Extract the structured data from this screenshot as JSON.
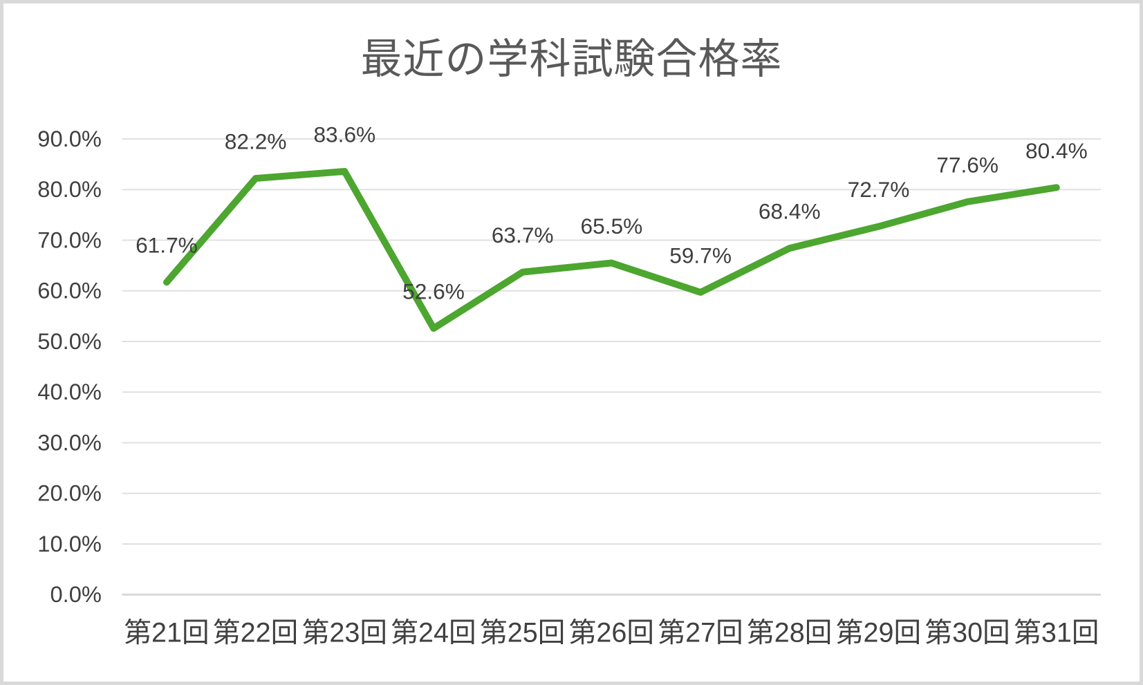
{
  "chart_data": {
    "type": "line",
    "title": "最近の学科試験合格率",
    "categories": [
      "第21回",
      "第22回",
      "第23回",
      "第24回",
      "第25回",
      "第26回",
      "第27回",
      "第28回",
      "第29回",
      "第30回",
      "第31回"
    ],
    "values": [
      61.7,
      82.2,
      83.6,
      52.6,
      63.7,
      65.5,
      59.7,
      68.4,
      72.7,
      77.6,
      80.4
    ],
    "data_labels": [
      "61.7%",
      "82.2%",
      "83.6%",
      "52.6%",
      "63.7%",
      "65.5%",
      "59.7%",
      "68.4%",
      "72.7%",
      "77.6%",
      "80.4%"
    ],
    "y_ticks": [
      0,
      10,
      20,
      30,
      40,
      50,
      60,
      70,
      80,
      90
    ],
    "y_tick_labels": [
      "0.0%",
      "10.0%",
      "20.0%",
      "30.0%",
      "40.0%",
      "50.0%",
      "60.0%",
      "70.0%",
      "80.0%",
      "90.0%"
    ],
    "xlabel": "",
    "ylabel": "",
    "ylim": [
      0,
      90
    ],
    "grid": true,
    "legend": false,
    "colors": {
      "line": "#4CA62F",
      "gridline": "#E0E0E0",
      "axis_line": "#D8D8D8",
      "title_text": "#595959",
      "tick_text": "#404040",
      "data_label_text": "#3F3F3F",
      "frame_border": "#D9D9D9",
      "background": "#FFFFFF"
    }
  }
}
